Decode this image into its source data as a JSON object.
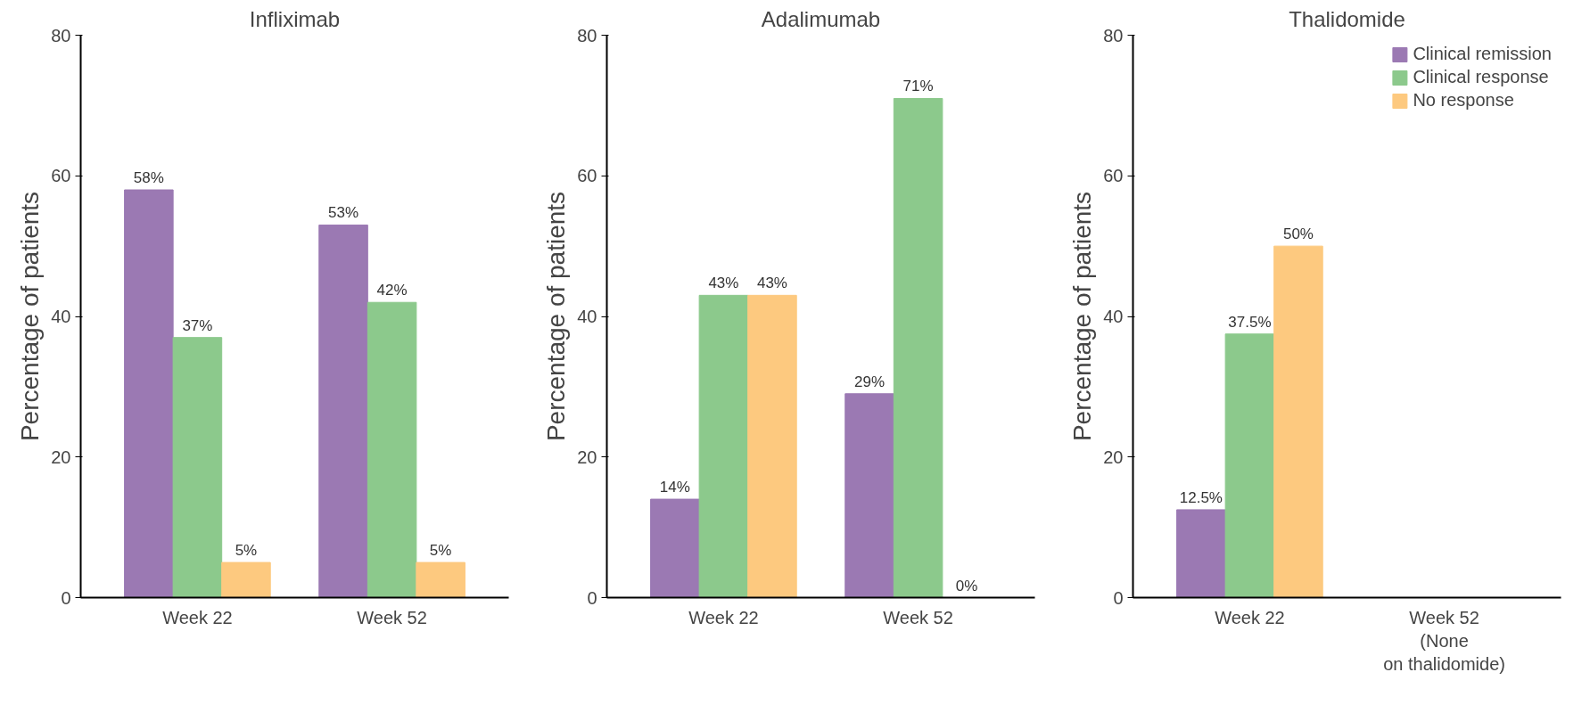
{
  "chart_data": [
    {
      "type": "bar",
      "title": "Infliximab",
      "ylabel": "Percentage of patients",
      "categories": [
        "Week 22",
        "Week 52"
      ],
      "ylim": [
        0,
        80
      ],
      "yticks": [
        0,
        20,
        40,
        60,
        80
      ],
      "grid": false,
      "legend": false,
      "series": [
        {
          "color": "#9b79b3",
          "values": [
            58,
            53
          ],
          "value_labels": [
            "58%",
            "53%"
          ]
        },
        {
          "color": "#8cc98c",
          "values": [
            37,
            42
          ],
          "value_labels": [
            "37%",
            "42%"
          ]
        },
        {
          "color": "#fdc97f",
          "values": [
            5,
            5
          ],
          "value_labels": [
            "5%",
            "5%"
          ]
        }
      ]
    },
    {
      "type": "bar",
      "title": "Adalimumab",
      "ylabel": "Percentage of patients",
      "categories": [
        "Week 22",
        "Week 52"
      ],
      "ylim": [
        0,
        80
      ],
      "yticks": [
        0,
        20,
        40,
        60,
        80
      ],
      "grid": false,
      "legend": false,
      "series": [
        {
          "color": "#9b79b3",
          "values": [
            14,
            29
          ],
          "value_labels": [
            "14%",
            "29%"
          ]
        },
        {
          "color": "#8cc98c",
          "values": [
            43,
            71
          ],
          "value_labels": [
            "43%",
            "71%"
          ]
        },
        {
          "color": "#fdc97f",
          "values": [
            43,
            0
          ],
          "value_labels": [
            "43%",
            "0%"
          ]
        }
      ]
    },
    {
      "type": "bar",
      "title": "Thalidomide",
      "ylabel": "Percentage of patients",
      "categories": [
        "Week 22",
        "Week 52\n(None\non thalidomide)"
      ],
      "ylim": [
        0,
        80
      ],
      "yticks": [
        0,
        20,
        40,
        60,
        80
      ],
      "grid": false,
      "legend": "top right",
      "series": [
        {
          "name": "Clinical remission",
          "color": "#9b79b3",
          "values": [
            12.5,
            null
          ],
          "value_labels": [
            "12.5%",
            null
          ]
        },
        {
          "name": "Clinical response",
          "color": "#8cc98c",
          "values": [
            37.5,
            null
          ],
          "value_labels": [
            "37.5%",
            null
          ]
        },
        {
          "name": "No response",
          "color": "#fdc97f",
          "values": [
            50,
            null
          ],
          "value_labels": [
            "50%",
            null
          ]
        }
      ]
    }
  ]
}
